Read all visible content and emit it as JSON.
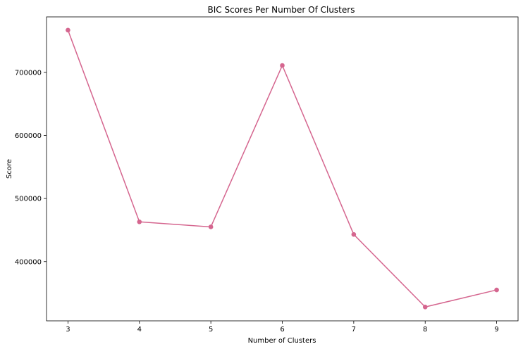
{
  "chart_data": {
    "type": "line",
    "title": "BIC Scores Per Number Of Clusters",
    "xlabel": "Number of Clusters",
    "ylabel": "Score",
    "x": [
      3,
      4,
      5,
      6,
      7,
      8,
      9
    ],
    "series": [
      {
        "values": [
          767000,
          463000,
          455000,
          711000,
          443000,
          328000,
          355000
        ],
        "color": "#d5668f",
        "marker": "circle"
      }
    ],
    "xticks": [
      "3",
      "4",
      "5",
      "6",
      "7",
      "8",
      "9"
    ],
    "yticks": [
      "400000",
      "500000",
      "600000",
      "700000"
    ],
    "xlim": [
      2.7,
      9.3
    ],
    "ylim": [
      306000,
      788000
    ],
    "grid": false,
    "legend": "none"
  }
}
